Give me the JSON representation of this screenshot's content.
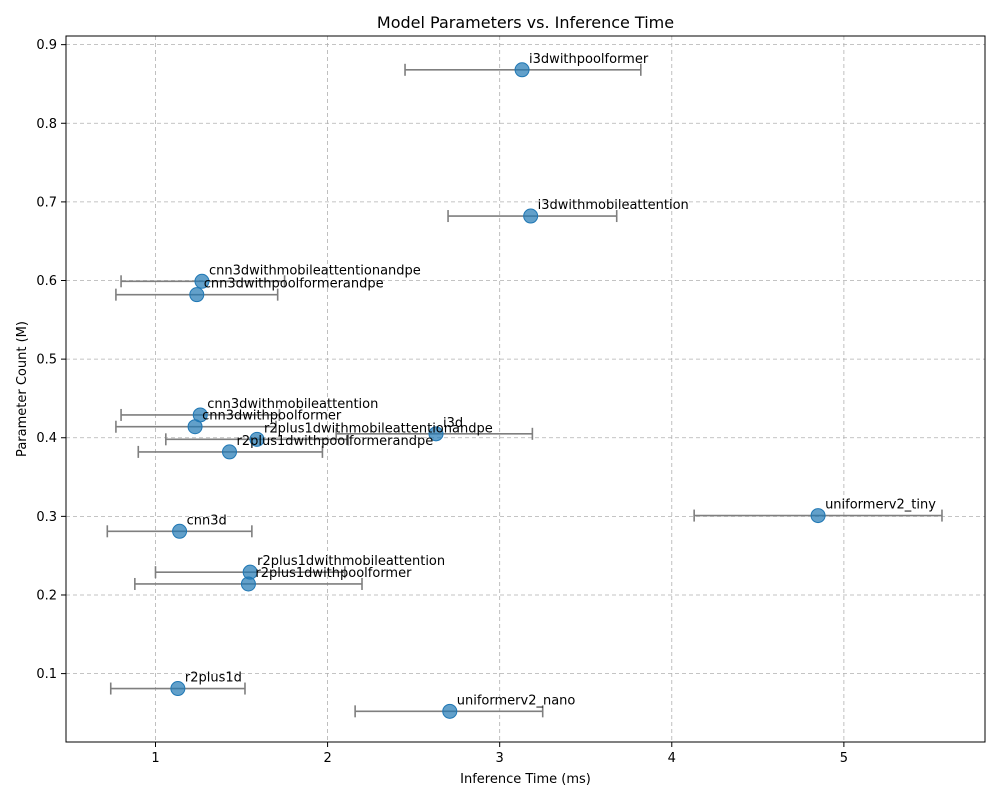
{
  "chart_data": {
    "type": "scatter",
    "title": "Model Parameters vs. Inference Time",
    "xlabel": "Inference Time (ms)",
    "ylabel": "Parameter Count (M)",
    "xlim": [
      0.48,
      5.82
    ],
    "ylim": [
      0.013,
      0.911
    ],
    "xticks": [
      1,
      2,
      3,
      4,
      5
    ],
    "yticks": [
      0.1,
      0.2,
      0.3,
      0.4,
      0.5,
      0.6,
      0.7,
      0.8,
      0.9
    ],
    "grid": true,
    "points": [
      {
        "label": "i3dwithpoolformer",
        "x": 3.13,
        "y": 0.868,
        "xerr_low": 2.45,
        "xerr_high": 3.82
      },
      {
        "label": "i3dwithmobileattention",
        "x": 3.18,
        "y": 0.682,
        "xerr_low": 2.7,
        "xerr_high": 3.68
      },
      {
        "label": "cnn3dwithmobileattentionandpe",
        "x": 1.27,
        "y": 0.599,
        "xerr_low": 0.8,
        "xerr_high": 1.75
      },
      {
        "label": "cnn3dwithpoolformerandpe",
        "x": 1.24,
        "y": 0.582,
        "xerr_low": 0.77,
        "xerr_high": 1.71
      },
      {
        "label": "cnn3dwithmobileattention",
        "x": 1.26,
        "y": 0.429,
        "xerr_low": 0.8,
        "xerr_high": 1.72
      },
      {
        "label": "cnn3dwithpoolformer",
        "x": 1.23,
        "y": 0.414,
        "xerr_low": 0.77,
        "xerr_high": 1.7
      },
      {
        "label": "i3d",
        "x": 2.63,
        "y": 0.405,
        "xerr_low": 2.05,
        "xerr_high": 3.19
      },
      {
        "label": "r2plus1dwithmobileattentionandpe",
        "x": 1.59,
        "y": 0.398,
        "xerr_low": 1.06,
        "xerr_high": 2.12
      },
      {
        "label": "r2plus1dwithpoolformerandpe",
        "x": 1.43,
        "y": 0.382,
        "xerr_low": 0.9,
        "xerr_high": 1.97
      },
      {
        "label": "uniformerv2_tiny",
        "x": 4.85,
        "y": 0.301,
        "xerr_low": 4.13,
        "xerr_high": 5.57
      },
      {
        "label": "cnn3d",
        "x": 1.14,
        "y": 0.281,
        "xerr_low": 0.72,
        "xerr_high": 1.56
      },
      {
        "label": "r2plus1dwithmobileattention",
        "x": 1.55,
        "y": 0.229,
        "xerr_low": 1.0,
        "xerr_high": 2.1
      },
      {
        "label": "r2plus1dwithpoolformer",
        "x": 1.54,
        "y": 0.214,
        "xerr_low": 0.88,
        "xerr_high": 2.2
      },
      {
        "label": "r2plus1d",
        "x": 1.13,
        "y": 0.081,
        "xerr_low": 0.74,
        "xerr_high": 1.52
      },
      {
        "label": "uniformerv2_nano",
        "x": 2.71,
        "y": 0.052,
        "xerr_low": 2.16,
        "xerr_high": 3.25
      }
    ]
  }
}
